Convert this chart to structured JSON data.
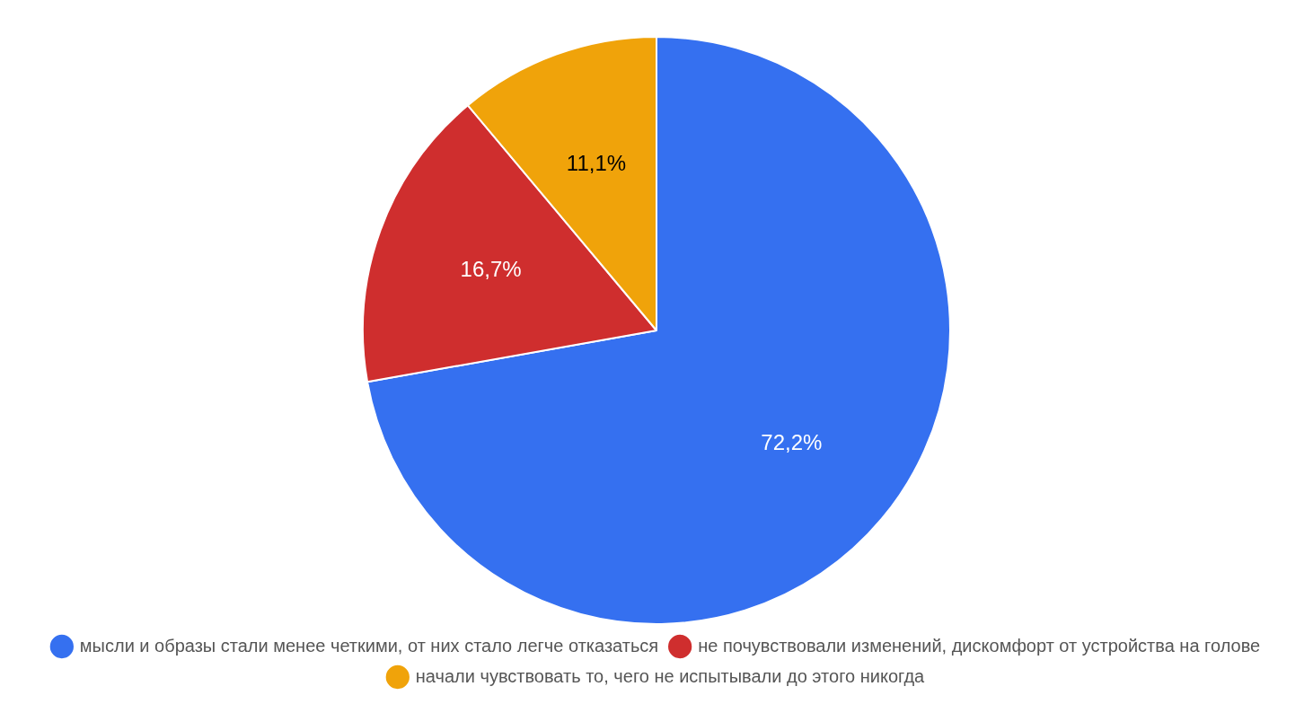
{
  "chart_data": {
    "type": "pie",
    "categories": [
      "мысли и образы стали менее четкими, от них стало легче отказаться",
      "не почувствовали изменений, дискомфорт от устройства на голове",
      "начали чувствовать то, чего не испытывали до этого никогда"
    ],
    "values": [
      72.2,
      16.7,
      11.1
    ],
    "colors": [
      "#3570f0",
      "#cf2e2e",
      "#f0a30a"
    ],
    "value_labels": [
      "72,2%",
      "16,7%",
      "11,1%"
    ],
    "legend": "bottom"
  }
}
